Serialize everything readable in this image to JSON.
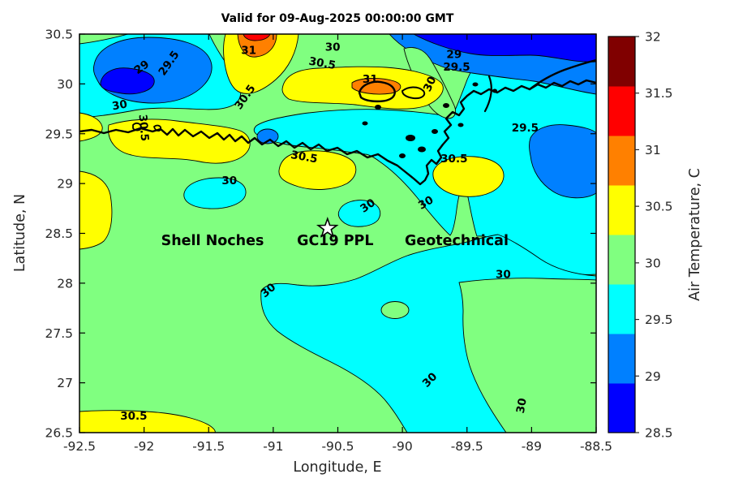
{
  "title": "Valid for 09-Aug-2025 00:00:00 GMT",
  "axes": {
    "x": {
      "label": "Longitude, E",
      "range": [
        -92.5,
        -88.5
      ],
      "ticks": [
        -92.5,
        -92,
        -91.5,
        -91,
        -90.5,
        -90,
        -89.5,
        -89,
        -88.5
      ]
    },
    "y": {
      "label": "Latitude, N",
      "range": [
        26.5,
        30.5
      ],
      "ticks": [
        26.5,
        27,
        27.5,
        28,
        28.5,
        29,
        29.5,
        30,
        30.5
      ]
    }
  },
  "colorbar": {
    "label": "Air Temperature, C",
    "range": [
      28.5,
      32
    ],
    "ticks": [
      28.5,
      29,
      29.5,
      30,
      30.5,
      31,
      31.5,
      32
    ],
    "colors_bottom_to_top": [
      "#0000FF",
      "#0080FF",
      "#00FFFF",
      "#80FF80",
      "#FFFF00",
      "#FF8000",
      "#FF0000",
      "#800000"
    ]
  },
  "annotation": {
    "parts": [
      {
        "text": "Shell Noches",
        "lon": -91.47,
        "lat": 28.43
      },
      {
        "text": "GC19 PPL",
        "lon": -90.52,
        "lat": 28.43
      },
      {
        "text": "Geotechnical",
        "lon": -89.58,
        "lat": 28.43
      }
    ],
    "star": {
      "lon": -90.58,
      "lat": 28.55
    }
  },
  "chart_data": {
    "type": "filled-contour-map",
    "title": "Valid for 09-Aug-2025 00:00:00 GMT",
    "xlabel": "Longitude, E",
    "ylabel": "Latitude, N",
    "xlim": [
      -92.5,
      -88.5
    ],
    "ylim": [
      26.5,
      30.5
    ],
    "colorbar_label": "Air Temperature, C",
    "colorbar_range": [
      28.5,
      32
    ],
    "contour_interval": 0.5,
    "levels": [
      28.5,
      29,
      29.5,
      30,
      30.5,
      31,
      31.5,
      32
    ],
    "colormap": "jet(8)",
    "legend_position": "right-colorbar",
    "grid": false,
    "contour_labels": [
      {
        "v": "29",
        "lon": -92.02,
        "lat": 30.17,
        "rot": -35
      },
      {
        "v": "29.5",
        "lon": -91.81,
        "lat": 30.21,
        "rot": -55
      },
      {
        "v": "30",
        "lon": -92.19,
        "lat": 29.79,
        "rot": -10
      },
      {
        "v": "30.5",
        "lon": -91.22,
        "lat": 29.87,
        "rot": -55
      },
      {
        "v": "31",
        "lon": -91.19,
        "lat": 30.34,
        "rot": 0
      },
      {
        "v": "30",
        "lon": -90.54,
        "lat": 30.37,
        "rot": 0
      },
      {
        "v": "30.5",
        "lon": -90.62,
        "lat": 30.21,
        "rot": 10
      },
      {
        "v": "31",
        "lon": -90.25,
        "lat": 30.05,
        "rot": 0
      },
      {
        "v": "29",
        "lon": -89.6,
        "lat": 30.3,
        "rot": 0
      },
      {
        "v": "29.5",
        "lon": -89.58,
        "lat": 30.17,
        "rot": 0
      },
      {
        "v": "30",
        "lon": -89.79,
        "lat": 30.0,
        "rot": -65
      },
      {
        "v": "29.5",
        "lon": -89.05,
        "lat": 29.56,
        "rot": 0
      },
      {
        "v": "30.5",
        "lon": -92.0,
        "lat": 29.56,
        "rot": 85
      },
      {
        "v": "30.5",
        "lon": -90.76,
        "lat": 29.27,
        "rot": 10
      },
      {
        "v": "30.5",
        "lon": -89.6,
        "lat": 29.25,
        "rot": 0
      },
      {
        "v": "30",
        "lon": -91.34,
        "lat": 29.03,
        "rot": 0
      },
      {
        "v": "30",
        "lon": -90.27,
        "lat": 28.78,
        "rot": -35
      },
      {
        "v": "30",
        "lon": -89.82,
        "lat": 28.81,
        "rot": -30
      },
      {
        "v": "30",
        "lon": -89.22,
        "lat": 28.09,
        "rot": 0
      },
      {
        "v": "30",
        "lon": -91.04,
        "lat": 27.93,
        "rot": -40
      },
      {
        "v": "30",
        "lon": -89.79,
        "lat": 27.03,
        "rot": -45
      },
      {
        "v": "30",
        "lon": -89.08,
        "lat": 26.77,
        "rot": -80
      },
      {
        "v": "30.5",
        "lon": -92.08,
        "lat": 26.67,
        "rot": 0
      }
    ],
    "annotation_text": "Shell Noches   GC19 PPL   Geotechnical",
    "star_marker": {
      "lon": -90.58,
      "lat": 28.55
    }
  }
}
